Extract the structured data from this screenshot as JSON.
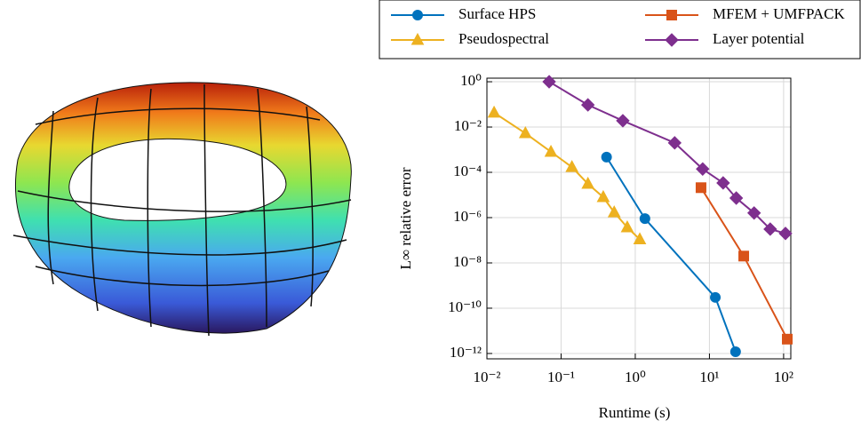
{
  "chart_data": {
    "type": "line",
    "log_x": true,
    "log_y": true,
    "grid": true,
    "legend": "top",
    "x_label": "Runtime (s)",
    "y_label": "L∞ relative error",
    "xlim": [
      0.01,
      125
    ],
    "ylim": [
      5.8e-13,
      1.44
    ],
    "xticks": [
      {
        "value": 0.01,
        "label": "10⁻²"
      },
      {
        "value": 0.1,
        "label": "10⁻¹"
      },
      {
        "value": 1,
        "label": "10⁰"
      },
      {
        "value": 10,
        "label": "10¹"
      },
      {
        "value": 100,
        "label": "10²"
      }
    ],
    "yticks": [
      {
        "value": 1e-12,
        "label": "10⁻¹²"
      },
      {
        "value": 1e-10,
        "label": "10⁻¹⁰"
      },
      {
        "value": 1e-08,
        "label": "10⁻⁸"
      },
      {
        "value": 1e-06,
        "label": "10⁻⁶"
      },
      {
        "value": 0.0001,
        "label": "10⁻⁴"
      },
      {
        "value": 0.01,
        "label": "10⁻²"
      },
      {
        "value": 1,
        "label": "10⁰"
      }
    ],
    "series": [
      {
        "name": "Surface HPS",
        "color": "#0072bd",
        "marker": "circle",
        "x": [
          0.41,
          1.35,
          12,
          22.5
        ],
        "values": [
          0.00047,
          9e-07,
          3e-10,
          1.2e-12
        ]
      },
      {
        "name": "MFEM + UMFPACK",
        "color": "#d95319",
        "marker": "square",
        "x": [
          7.7,
          29,
          112
        ],
        "values": [
          2.1e-05,
          2e-08,
          4.3e-12
        ]
      },
      {
        "name": "Pseudospectral",
        "color": "#edb120",
        "marker": "triangle",
        "x": [
          0.0125,
          0.033,
          0.073,
          0.14,
          0.23,
          0.37,
          0.52,
          0.78,
          1.15
        ],
        "values": [
          0.043,
          0.0053,
          0.0008,
          0.00017,
          3.1e-05,
          8e-06,
          1.7e-06,
          3.7e-07,
          1.1e-07
        ]
      },
      {
        "name": "Layer potential",
        "color": "#7e2f8e",
        "marker": "diamond",
        "x": [
          0.069,
          0.23,
          0.68,
          3.4,
          8.1,
          15.3,
          23,
          40,
          66,
          106
        ],
        "values": [
          1.0,
          0.095,
          0.019,
          0.002,
          0.00014,
          3.4e-05,
          7.3e-06,
          1.6e-06,
          3.1e-07,
          2e-07
        ]
      }
    ]
  }
}
